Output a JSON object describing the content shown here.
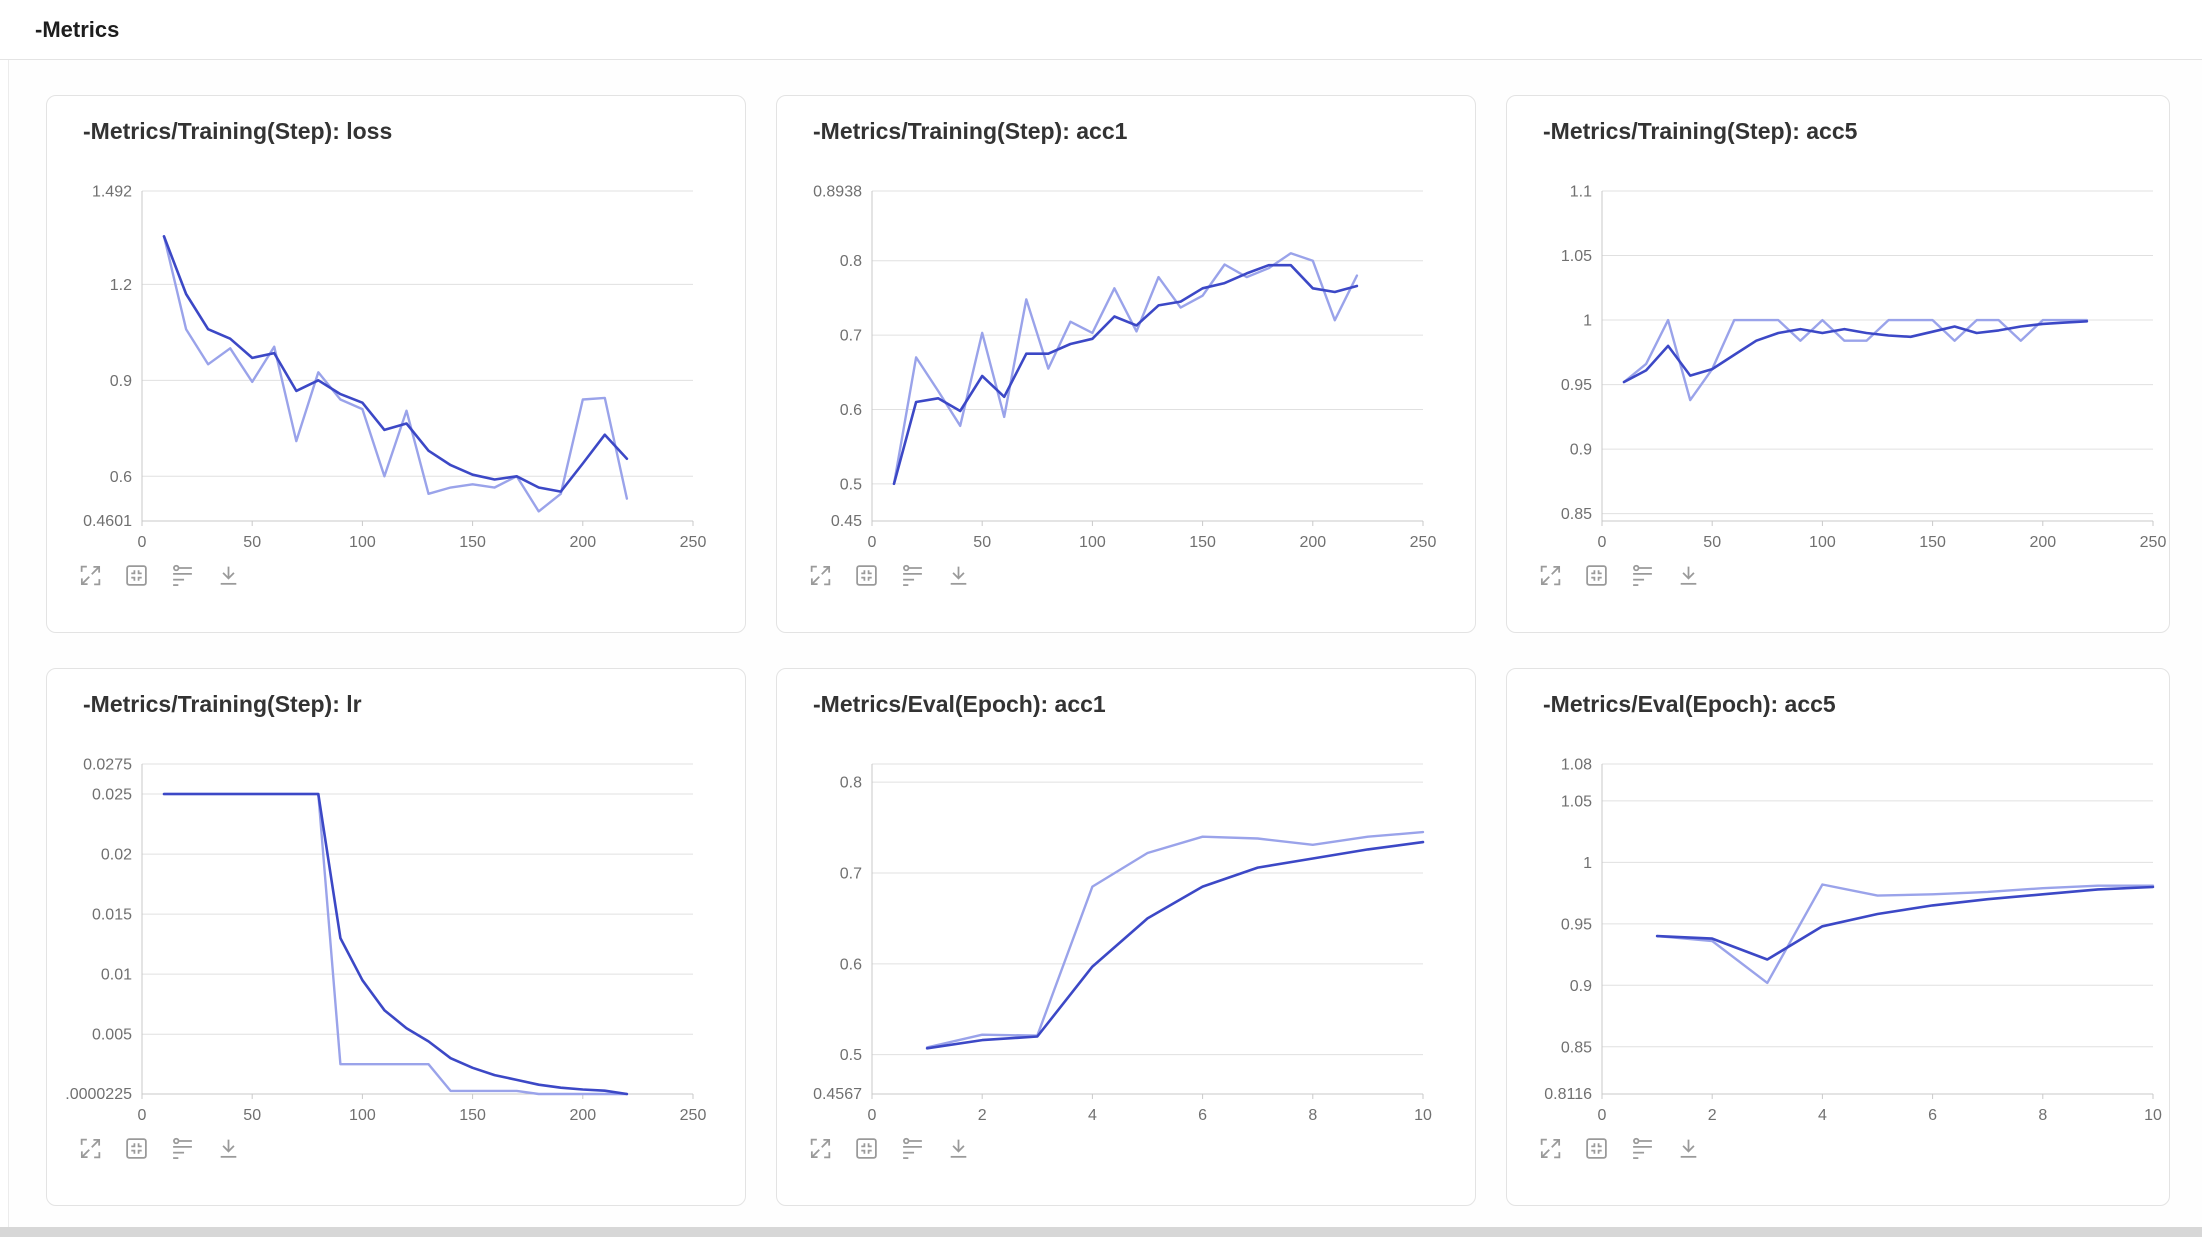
{
  "header": {
    "title": "-Metrics"
  },
  "toolbar": {
    "items": [
      {
        "name": "maximize",
        "label": "Maximize chart"
      },
      {
        "name": "restore",
        "label": "Restore view"
      },
      {
        "name": "axis-settings",
        "label": "Axis settings"
      },
      {
        "name": "download",
        "label": "Download image"
      }
    ]
  },
  "colors": {
    "series_raw": "#9aa3ea",
    "series_smoothed": "#3c48c6",
    "gridline": "#e0e0e0",
    "axis_line": "#c9c9c9",
    "tick_text": "#707070",
    "icon_gray": "#9a9a9a"
  },
  "chart_data": [
    {
      "type": "line",
      "title": "-Metrics/Training(Step): loss",
      "xlabel": "",
      "ylabel": "",
      "xlim": [
        0,
        250
      ],
      "x_ticks": [
        0,
        50,
        100,
        150,
        200,
        250
      ],
      "ylim": [
        0.4601,
        1.492
      ],
      "y_gridlines": [
        {
          "value": 1.492,
          "label": "1.492"
        },
        {
          "value": 1.2,
          "label": "1.2"
        },
        {
          "value": 0.9,
          "label": "0.9"
        },
        {
          "value": 0.6,
          "label": "0.6"
        }
      ],
      "y_bottom_label": "0.4601",
      "x": [
        10,
        20,
        30,
        40,
        50,
        60,
        70,
        80,
        90,
        100,
        110,
        120,
        130,
        140,
        150,
        160,
        170,
        180,
        190,
        200,
        210,
        220
      ],
      "series": [
        {
          "name": "raw",
          "color": "#9aa3ea",
          "width": 2.4,
          "values": [
            1.35,
            1.06,
            0.95,
            1.0,
            0.895,
            1.005,
            0.71,
            0.925,
            0.84,
            0.81,
            0.6,
            0.805,
            0.545,
            0.565,
            0.575,
            0.565,
            0.6,
            0.49,
            0.545,
            0.84,
            0.845,
            0.53
          ]
        },
        {
          "name": "smoothed",
          "color": "#3c48c6",
          "width": 2.6,
          "values": [
            1.35,
            1.17,
            1.06,
            1.03,
            0.97,
            0.985,
            0.867,
            0.9,
            0.857,
            0.83,
            0.745,
            0.765,
            0.68,
            0.635,
            0.605,
            0.59,
            0.6,
            0.565,
            0.552,
            0.64,
            0.73,
            0.655
          ]
        }
      ]
    },
    {
      "type": "line",
      "title": "-Metrics/Training(Step): acc1",
      "xlabel": "",
      "ylabel": "",
      "xlim": [
        0,
        250
      ],
      "x_ticks": [
        0,
        50,
        100,
        150,
        200,
        250
      ],
      "ylim": [
        0.45,
        0.8938
      ],
      "y_gridlines": [
        {
          "value": 0.8938,
          "label": "0.8938"
        },
        {
          "value": 0.8,
          "label": "0.8"
        },
        {
          "value": 0.7,
          "label": "0.7"
        },
        {
          "value": 0.6,
          "label": "0.6"
        },
        {
          "value": 0.5,
          "label": "0.5"
        }
      ],
      "y_bottom_label": "0.45",
      "x": [
        10,
        20,
        30,
        40,
        50,
        60,
        70,
        80,
        90,
        100,
        110,
        120,
        130,
        140,
        150,
        160,
        170,
        180,
        190,
        200,
        210,
        220
      ],
      "series": [
        {
          "name": "raw",
          "color": "#9aa3ea",
          "width": 2.4,
          "values": [
            0.5,
            0.67,
            0.625,
            0.578,
            0.703,
            0.59,
            0.748,
            0.655,
            0.718,
            0.703,
            0.763,
            0.705,
            0.778,
            0.737,
            0.753,
            0.795,
            0.778,
            0.79,
            0.81,
            0.8,
            0.72,
            0.78
          ]
        },
        {
          "name": "smoothed",
          "color": "#3c48c6",
          "width": 2.6,
          "values": [
            0.5,
            0.61,
            0.615,
            0.598,
            0.645,
            0.617,
            0.675,
            0.675,
            0.688,
            0.695,
            0.725,
            0.713,
            0.74,
            0.745,
            0.763,
            0.77,
            0.783,
            0.794,
            0.794,
            0.763,
            0.758,
            0.766
          ]
        }
      ]
    },
    {
      "type": "line",
      "title": "-Metrics/Training(Step): acc5",
      "xlabel": "",
      "ylabel": "",
      "xlim": [
        0,
        250
      ],
      "x_ticks": [
        0,
        50,
        100,
        150,
        200,
        250
      ],
      "ylim": [
        0.8443,
        1.1
      ],
      "y_gridlines": [
        {
          "value": 1.1,
          "label": "1.1"
        },
        {
          "value": 1.05,
          "label": "1.05"
        },
        {
          "value": 1.0,
          "label": "1"
        },
        {
          "value": 0.95,
          "label": "0.95"
        },
        {
          "value": 0.9,
          "label": "0.9"
        },
        {
          "value": 0.85,
          "label": "0.85"
        }
      ],
      "y_bottom_label": "",
      "x": [
        10,
        20,
        30,
        40,
        50,
        60,
        70,
        80,
        90,
        100,
        110,
        120,
        130,
        140,
        150,
        160,
        170,
        180,
        190,
        200,
        210,
        220
      ],
      "series": [
        {
          "name": "raw",
          "color": "#9aa3ea",
          "width": 2.4,
          "values": [
            0.952,
            0.966,
            1.0,
            0.938,
            0.962,
            1.0,
            1.0,
            1.0,
            0.984,
            1.0,
            0.984,
            0.984,
            1.0,
            1.0,
            1.0,
            0.984,
            1.0,
            1.0,
            0.984,
            1.0,
            1.0,
            1.0
          ]
        },
        {
          "name": "smoothed",
          "color": "#3c48c6",
          "width": 2.6,
          "values": [
            0.952,
            0.961,
            0.98,
            0.957,
            0.962,
            0.973,
            0.984,
            0.99,
            0.993,
            0.99,
            0.993,
            0.99,
            0.988,
            0.987,
            0.991,
            0.995,
            0.99,
            0.992,
            0.995,
            0.997,
            0.998,
            0.999
          ]
        }
      ]
    },
    {
      "type": "line",
      "title": "-Metrics/Training(Step): lr",
      "xlabel": "",
      "ylabel": "",
      "xlim": [
        0,
        250
      ],
      "x_ticks": [
        0,
        50,
        100,
        150,
        200,
        250
      ],
      "ylim": [
        2.25e-05,
        0.0275
      ],
      "y_gridlines": [
        {
          "value": 0.0275,
          "label": "0.0275"
        },
        {
          "value": 0.025,
          "label": "0.025"
        },
        {
          "value": 0.02,
          "label": "0.02"
        },
        {
          "value": 0.015,
          "label": "0.015"
        },
        {
          "value": 0.01,
          "label": "0.01"
        },
        {
          "value": 0.005,
          "label": "0.005"
        }
      ],
      "y_bottom_label": ".0000225",
      "x": [
        10,
        20,
        30,
        40,
        50,
        60,
        70,
        80,
        90,
        100,
        110,
        120,
        130,
        140,
        150,
        160,
        170,
        180,
        190,
        200,
        210,
        220
      ],
      "series": [
        {
          "name": "raw",
          "color": "#9aa3ea",
          "width": 2.4,
          "values": [
            0.025,
            0.025,
            0.025,
            0.025,
            0.025,
            0.025,
            0.025,
            0.025,
            0.0025,
            0.0025,
            0.0025,
            0.0025,
            0.0025,
            0.00028,
            0.00028,
            0.00028,
            0.00028,
            2.25e-05,
            2.25e-05,
            2.25e-05,
            2.25e-05,
            2.25e-05
          ]
        },
        {
          "name": "smoothed",
          "color": "#3c48c6",
          "width": 2.6,
          "values": [
            0.025,
            0.025,
            0.025,
            0.025,
            0.025,
            0.025,
            0.025,
            0.025,
            0.013,
            0.0095,
            0.007,
            0.0055,
            0.0044,
            0.003,
            0.0022,
            0.0016,
            0.0012,
            0.0008,
            0.00055,
            0.0004,
            0.0003,
            2.25e-05
          ]
        }
      ]
    },
    {
      "type": "line",
      "title": "-Metrics/Eval(Epoch): acc1",
      "xlabel": "",
      "ylabel": "",
      "xlim": [
        0,
        10
      ],
      "x_ticks": [
        0,
        2,
        4,
        6,
        8,
        10
      ],
      "ylim": [
        0.4567,
        0.82
      ],
      "y_gridlines": [
        {
          "value": 0.82,
          "label": ""
        },
        {
          "value": 0.8,
          "label": "0.8"
        },
        {
          "value": 0.7,
          "label": "0.7"
        },
        {
          "value": 0.6,
          "label": "0.6"
        },
        {
          "value": 0.5,
          "label": "0.5"
        }
      ],
      "y_bottom_label": "0.4567",
      "x": [
        1,
        2,
        3,
        4,
        5,
        6,
        7,
        8,
        9,
        10
      ],
      "series": [
        {
          "name": "raw",
          "color": "#9aa3ea",
          "width": 2.4,
          "values": [
            0.508,
            0.522,
            0.521,
            0.685,
            0.722,
            0.74,
            0.738,
            0.731,
            0.74,
            0.745
          ]
        },
        {
          "name": "smoothed",
          "color": "#3c48c6",
          "width": 2.6,
          "values": [
            0.507,
            0.516,
            0.52,
            0.597,
            0.65,
            0.685,
            0.706,
            0.716,
            0.726,
            0.734
          ]
        }
      ]
    },
    {
      "type": "line",
      "title": "-Metrics/Eval(Epoch): acc5",
      "xlabel": "",
      "ylabel": "",
      "xlim": [
        0,
        10
      ],
      "x_ticks": [
        0,
        2,
        4,
        6,
        8,
        10
      ],
      "ylim": [
        0.8116,
        1.08
      ],
      "y_gridlines": [
        {
          "value": 1.08,
          "label": "1.08"
        },
        {
          "value": 1.05,
          "label": "1.05"
        },
        {
          "value": 1.0,
          "label": "1"
        },
        {
          "value": 0.95,
          "label": "0.95"
        },
        {
          "value": 0.9,
          "label": "0.9"
        },
        {
          "value": 0.85,
          "label": "0.85"
        }
      ],
      "y_bottom_label": "0.8116",
      "x": [
        1,
        2,
        3,
        4,
        5,
        6,
        7,
        8,
        9,
        10
      ],
      "series": [
        {
          "name": "raw",
          "color": "#9aa3ea",
          "width": 2.4,
          "values": [
            0.94,
            0.936,
            0.902,
            0.982,
            0.973,
            0.974,
            0.976,
            0.979,
            0.981,
            0.981
          ]
        },
        {
          "name": "smoothed",
          "color": "#3c48c6",
          "width": 2.6,
          "values": [
            0.94,
            0.938,
            0.921,
            0.948,
            0.958,
            0.965,
            0.97,
            0.974,
            0.978,
            0.98
          ]
        }
      ]
    }
  ]
}
